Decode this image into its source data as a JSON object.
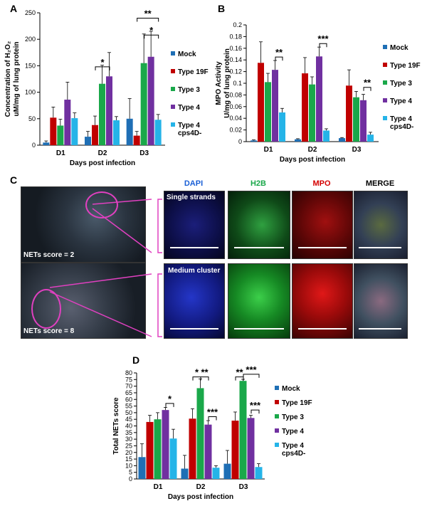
{
  "panels": {
    "A": "A",
    "B": "B",
    "C": "C",
    "D": "D"
  },
  "colors": {
    "mock": "#1f6fb5",
    "t19f": "#c00000",
    "t3": "#1aa84a",
    "t4": "#7030a0",
    "t4cps": "#25b4e8"
  },
  "legend_labels": [
    "Mock",
    "Type 19F",
    "Type 3",
    "Type 4",
    "Type 4",
    "cps4D-"
  ],
  "chart_data": [
    {
      "type": "bar",
      "categories": [
        "D1",
        "D2",
        "D3"
      ],
      "xlabel": "Days post infection",
      "ylabel_line1": "Concentration of H₂O₂",
      "ylabel_line2": "uM/mg of lung protein",
      "ylim": [
        0,
        250
      ],
      "yticks": [
        "0",
        "50",
        "100",
        "150",
        "200",
        "250"
      ],
      "series": [
        {
          "name": "Mock",
          "values": [
            5,
            16,
            50
          ],
          "err": [
            3,
            10,
            38
          ]
        },
        {
          "name": "Type 19F",
          "values": [
            52,
            38,
            18
          ],
          "err": [
            20,
            17,
            8
          ]
        },
        {
          "name": "Type 3",
          "values": [
            37,
            116,
            155
          ],
          "err": [
            12,
            35,
            55
          ]
        },
        {
          "name": "Type 4",
          "values": [
            86,
            130,
            167
          ],
          "err": [
            33,
            45,
            48
          ]
        },
        {
          "name": "Type 4 cps4D-",
          "values": [
            51,
            47,
            48
          ],
          "err": [
            10,
            7,
            10
          ]
        }
      ],
      "significance": [
        "*",
        "*",
        "**"
      ]
    },
    {
      "type": "bar",
      "categories": [
        "D1",
        "D2",
        "D3"
      ],
      "xlabel": "Days post infection",
      "ylabel_line1": "MPO Activity",
      "ylabel_line2": "U/mg of lung protein",
      "ylim": [
        0,
        0.2
      ],
      "yticks": [
        "0",
        "0.02",
        "0.04",
        "0.06",
        "0.08",
        "0.1",
        "0.12",
        "0.14",
        "0.16",
        "0.18",
        "0.2"
      ],
      "series": [
        {
          "name": "Mock",
          "values": [
            0.002,
            0.004,
            0.006
          ],
          "err": [
            0.001,
            0.001,
            0.001
          ]
        },
        {
          "name": "Type 19F",
          "values": [
            0.135,
            0.117,
            0.096
          ],
          "err": [
            0.036,
            0.027,
            0.027
          ]
        },
        {
          "name": "Type 3",
          "values": [
            0.102,
            0.098,
            0.076
          ],
          "err": [
            0.015,
            0.013,
            0.01
          ]
        },
        {
          "name": "Type 4",
          "values": [
            0.123,
            0.146,
            0.071
          ],
          "err": [
            0.016,
            0.016,
            0.01
          ]
        },
        {
          "name": "Type 4 cps4D-",
          "values": [
            0.05,
            0.019,
            0.012
          ],
          "err": [
            0.007,
            0.003,
            0.004
          ]
        }
      ],
      "significance": [
        "**",
        "***",
        "**"
      ]
    },
    {
      "type": "bar",
      "categories": [
        "D1",
        "D2",
        "D3"
      ],
      "xlabel": "Days post infection",
      "ylabel_line1": "Total NETs score",
      "ylim": [
        0,
        80
      ],
      "yticks": [
        "0",
        "5",
        "10",
        "15",
        "20",
        "25",
        "30",
        "35",
        "40",
        "45",
        "50",
        "55",
        "60",
        "65",
        "70",
        "75",
        "80"
      ],
      "series": [
        {
          "name": "Mock",
          "values": [
            16.5,
            7.8,
            11.5
          ],
          "err": [
            10,
            10,
            10
          ]
        },
        {
          "name": "Type 19F",
          "values": [
            43,
            45.5,
            44
          ],
          "err": [
            5,
            7.5,
            6.5
          ]
        },
        {
          "name": "Type 3",
          "values": [
            45,
            68.5,
            74
          ],
          "err": [
            5,
            7,
            1.2
          ]
        },
        {
          "name": "Type 4",
          "values": [
            52,
            41,
            46
          ],
          "err": [
            2,
            3,
            2
          ]
        },
        {
          "name": "Type 4 cps4D-",
          "values": [
            30.5,
            8.5,
            9
          ],
          "err": [
            7,
            1.5,
            2.5
          ]
        }
      ],
      "significance": [
        "*",
        "*",
        "**",
        "***",
        "**",
        "***",
        "***"
      ]
    }
  ],
  "panel_c": {
    "channels": [
      "DAPI",
      "H2B",
      "MPO",
      "MERGE"
    ],
    "channel_colors": [
      "#1a5fd6",
      "#1aa84a",
      "#d40000",
      "#000000"
    ],
    "row1_label": "Single strands",
    "row2_label": "Medium cluster",
    "score1": "NETs score = 2",
    "score2": "NETs score = 8"
  }
}
